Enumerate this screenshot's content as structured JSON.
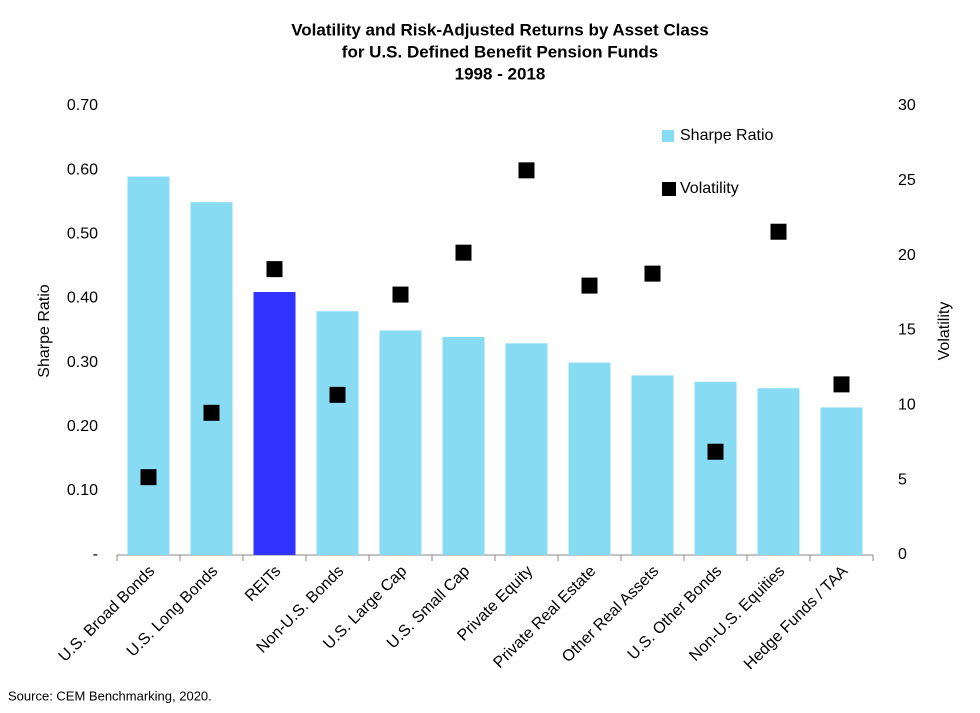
{
  "chart_data": {
    "type": "bar",
    "title": [
      "Volatility and Risk-Adjusted Returns by Asset Class",
      "for U.S. Defined Benefit Pension Funds",
      "1998 - 2018"
    ],
    "source": "Source: CEM Benchmarking, 2020.",
    "y_label": "Sharpe Ratio",
    "y2_label": "Volatility",
    "categories": [
      "U.S. Broad Bonds",
      "U.S. Long Bonds",
      "REITs",
      "Non-U.S. Bonds",
      "U.S. Large Cap",
      "U.S. Small Cap",
      "Private Equity",
      "Private Real Estate",
      "Other Real Assets",
      "U.S. Other Bonds",
      "Non-U.S. Equities",
      "Hedge Funds / TAA"
    ],
    "series": [
      {
        "name": "Sharpe Ratio",
        "type": "bar",
        "color": "#87dcf4",
        "colors": [
          "#87dcf4",
          "#87dcf4",
          "#3333ff",
          "#87dcf4",
          "#87dcf4",
          "#87dcf4",
          "#87dcf4",
          "#87dcf4",
          "#87dcf4",
          "#87dcf4",
          "#87dcf4",
          "#87dcf4"
        ],
        "values": [
          0.59,
          0.55,
          0.41,
          0.38,
          0.35,
          0.34,
          0.33,
          0.3,
          0.28,
          0.27,
          0.26,
          0.23
        ]
      },
      {
        "name": "Volatility",
        "type": "scatter",
        "axis": "y2",
        "color": "#000000",
        "values": [
          5.2,
          9.5,
          19.1,
          10.7,
          17.4,
          20.2,
          25.7,
          18.0,
          18.8,
          6.9,
          21.6,
          11.4
        ]
      }
    ],
    "ylim": [
      0,
      0.7
    ],
    "yticks": [
      {
        "value": 0,
        "label": "-"
      },
      {
        "value": 0.1,
        "label": "0.10"
      },
      {
        "value": 0.2,
        "label": "0.20"
      },
      {
        "value": 0.3,
        "label": "0.30"
      },
      {
        "value": 0.4,
        "label": "0.40"
      },
      {
        "value": 0.5,
        "label": "0.50"
      },
      {
        "value": 0.6,
        "label": "0.60"
      },
      {
        "value": 0.7,
        "label": "0.70"
      }
    ],
    "y2lim": [
      0,
      30
    ],
    "y2ticks": [
      0,
      5,
      10,
      15,
      20,
      25,
      30
    ],
    "legend": "upper right",
    "grid": false
  }
}
